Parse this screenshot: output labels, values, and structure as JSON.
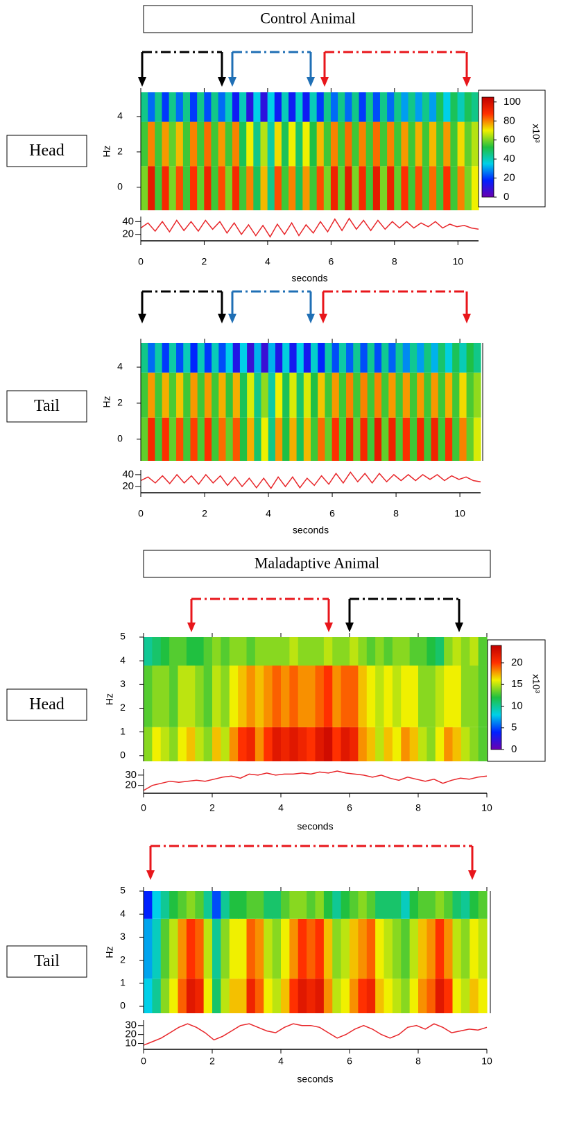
{
  "chart_data": [
    {
      "type": "heatmap",
      "title": "Control Animal",
      "row_label": "Head",
      "ylabel": "Hz",
      "xlabel": "seconds",
      "xlim": [
        0,
        10.65
      ],
      "xticks": [
        0,
        2,
        4,
        6,
        8,
        10
      ],
      "ylim": [
        -1.3,
        5.37
      ],
      "yticks": [
        0,
        2,
        4
      ],
      "y_edges": [
        -1.3,
        1.2,
        3.7,
        5.37
      ],
      "zlim": [
        0,
        105
      ],
      "colormap": [
        "#6a00b0",
        "#0020ff",
        "#00d0e8",
        "#20c040",
        "#f0f000",
        "#ff3000",
        "#c00000"
      ],
      "z": [
        [
          60,
          95,
          55,
          90,
          60,
          85,
          55,
          88,
          58,
          92,
          55,
          85,
          60,
          90,
          55,
          80,
          50,
          75,
          45,
          85,
          55,
          80,
          50,
          78,
          55,
          85,
          60,
          92,
          58,
          95,
          60,
          90,
          55,
          95,
          60,
          93,
          58,
          88,
          55,
          85,
          55,
          82,
          55,
          88,
          55,
          80,
          60,
          70
        ],
        [
          55,
          80,
          55,
          78,
          58,
          75,
          55,
          80,
          55,
          82,
          55,
          78,
          55,
          80,
          50,
          70,
          45,
          65,
          42,
          72,
          50,
          70,
          48,
          70,
          52,
          75,
          55,
          80,
          55,
          82,
          55,
          80,
          55,
          82,
          55,
          80,
          55,
          78,
          55,
          76,
          55,
          75,
          55,
          78,
          55,
          72,
          58,
          65
        ],
        [
          45,
          25,
          45,
          20,
          45,
          25,
          45,
          20,
          45,
          22,
          45,
          25,
          40,
          15,
          40,
          10,
          35,
          10,
          35,
          15,
          40,
          15,
          38,
          15,
          40,
          20,
          45,
          25,
          45,
          25,
          45,
          20,
          45,
          22,
          45,
          25,
          45,
          30,
          45,
          30,
          45,
          30,
          50,
          35,
          50,
          40,
          50,
          45
        ]
      ],
      "colorbar": {
        "ticks": [
          0,
          20,
          40,
          60,
          80,
          100
        ],
        "label": "x10³"
      },
      "trace": {
        "color": "#e8262a",
        "ylim": [
          12,
          48
        ],
        "yticks": [
          20,
          40
        ],
        "values": [
          30,
          38,
          25,
          40,
          24,
          42,
          26,
          40,
          25,
          42,
          28,
          40,
          22,
          38,
          20,
          35,
          18,
          34,
          16,
          36,
          20,
          38,
          18,
          35,
          22,
          40,
          24,
          44,
          26,
          45,
          28,
          42,
          26,
          42,
          28,
          40,
          30,
          40,
          30,
          38,
          32,
          40,
          30,
          36,
          32,
          34,
          30,
          28
        ]
      }
    },
    {
      "type": "heatmap",
      "row_label": "Tail",
      "ylabel": "Hz",
      "xlabel": "seconds",
      "xlim": [
        0,
        10.65
      ],
      "xticks": [
        0,
        2,
        4,
        6,
        8,
        10
      ],
      "ylim": [
        -1.2,
        5.35
      ],
      "yticks": [
        0,
        2,
        4
      ],
      "y_edges": [
        -1.2,
        1.2,
        3.7,
        5.35
      ],
      "zlim": [
        0,
        105
      ],
      "colormap": [
        "#6a00b0",
        "#0020ff",
        "#00d0e8",
        "#20c040",
        "#f0f000",
        "#ff3000",
        "#c00000"
      ],
      "z": [
        [
          58,
          90,
          55,
          88,
          58,
          85,
          55,
          86,
          56,
          88,
          55,
          82,
          58,
          84,
          52,
          76,
          48,
          70,
          45,
          78,
          52,
          76,
          50,
          75,
          55,
          82,
          58,
          88,
          56,
          92,
          58,
          90,
          55,
          95,
          58,
          92,
          56,
          88,
          55,
          90,
          55,
          92,
          55,
          88,
          55,
          80,
          58,
          68
        ],
        [
          55,
          78,
          55,
          76,
          56,
          74,
          55,
          78,
          55,
          78,
          55,
          76,
          54,
          76,
          50,
          68,
          45,
          62,
          42,
          70,
          50,
          68,
          48,
          68,
          52,
          74,
          55,
          78,
          55,
          80,
          55,
          80,
          55,
          80,
          55,
          78,
          55,
          78,
          55,
          78,
          55,
          78,
          55,
          76,
          55,
          72,
          56,
          62
        ],
        [
          45,
          25,
          42,
          20,
          42,
          22,
          40,
          18,
          40,
          20,
          40,
          22,
          35,
          12,
          35,
          8,
          32,
          8,
          32,
          12,
          36,
          14,
          35,
          14,
          38,
          18,
          42,
          22,
          42,
          24,
          44,
          22,
          44,
          22,
          44,
          24,
          44,
          28,
          44,
          30,
          46,
          32,
          48,
          36,
          50,
          40,
          52,
          45
        ]
      ],
      "trace": {
        "color": "#e8262a",
        "ylim": [
          12,
          48
        ],
        "yticks": [
          20,
          40
        ],
        "values": [
          30,
          36,
          26,
          38,
          25,
          40,
          26,
          38,
          24,
          40,
          26,
          38,
          22,
          36,
          20,
          34,
          18,
          34,
          17,
          36,
          20,
          36,
          18,
          34,
          22,
          38,
          24,
          42,
          26,
          44,
          28,
          42,
          26,
          42,
          28,
          40,
          30,
          40,
          30,
          40,
          32,
          40,
          30,
          38,
          32,
          36,
          30,
          28
        ]
      }
    },
    {
      "type": "heatmap",
      "title": "Maladaptive Animal",
      "row_label": "Head",
      "ylabel": "Hz",
      "xlabel": "seconds",
      "xlim": [
        0,
        10
      ],
      "xticks": [
        0,
        2,
        4,
        6,
        8,
        10
      ],
      "ylim": [
        -0.24,
        5
      ],
      "yticks": [
        0,
        1,
        2,
        3,
        4,
        5
      ],
      "y_edges": [
        -0.24,
        1.2,
        3.8,
        5
      ],
      "zlim": [
        0,
        24
      ],
      "colormap": [
        "#6a00b0",
        "#0020ff",
        "#00d0e8",
        "#20c040",
        "#f0f000",
        "#ff3000",
        "#c00000"
      ],
      "z": [
        [
          14,
          16,
          15,
          14,
          16,
          17,
          15,
          14,
          17,
          15,
          18,
          20,
          21,
          18,
          20,
          22,
          21,
          22,
          21,
          20,
          22,
          23,
          20,
          22,
          21,
          18,
          17,
          15,
          17,
          16,
          18,
          17,
          15,
          14,
          16,
          18,
          17,
          15,
          14,
          13
        ],
        [
          13,
          14,
          14,
          13,
          15,
          15,
          14,
          13,
          15,
          14,
          16,
          17,
          18,
          17,
          18,
          19,
          18,
          19,
          18,
          18,
          19,
          20,
          18,
          19,
          19,
          17,
          16,
          15,
          16,
          15,
          16,
          16,
          14,
          14,
          15,
          16,
          16,
          14,
          14,
          13
        ],
        [
          10,
          11,
          12,
          13,
          13,
          12,
          12,
          13,
          14,
          13,
          14,
          14,
          13,
          14,
          14,
          14,
          14,
          15,
          14,
          14,
          14,
          15,
          14,
          14,
          15,
          14,
          13,
          14,
          13,
          14,
          14,
          13,
          13,
          12,
          11,
          14,
          15,
          14,
          15,
          13
        ]
      ],
      "colorbar": {
        "ticks": [
          0,
          5,
          10,
          15,
          20
        ],
        "label": "x10³"
      },
      "trace": {
        "color": "#e8262a",
        "ylim": [
          13,
          36
        ],
        "yticks": [
          20,
          30
        ],
        "values": [
          15,
          20,
          22,
          24,
          23,
          24,
          25,
          24,
          26,
          28,
          29,
          27,
          31,
          30,
          32,
          30,
          31,
          31,
          32,
          31,
          33,
          32,
          34,
          32,
          31,
          30,
          28,
          30,
          27,
          25,
          28,
          26,
          24,
          26,
          22,
          25,
          27,
          26,
          28,
          29
        ]
      }
    },
    {
      "type": "heatmap",
      "row_label": "Tail",
      "ylabel": "Hz",
      "xlabel": "seconds",
      "xlim": [
        0,
        10
      ],
      "xticks": [
        0,
        2,
        4,
        6,
        8,
        10
      ],
      "ylim": [
        -0.3,
        5
      ],
      "yticks": [
        0,
        1,
        2,
        3,
        4,
        5
      ],
      "y_edges": [
        -0.3,
        1.2,
        3.8,
        5
      ],
      "zlim": [
        0,
        24
      ],
      "colormap": [
        "#6a00b0",
        "#0020ff",
        "#00d0e8",
        "#20c040",
        "#f0f000",
        "#ff3000",
        "#c00000"
      ],
      "z": [
        [
          8,
          10,
          14,
          16,
          19,
          22,
          21,
          16,
          11,
          15,
          17,
          17,
          21,
          19,
          16,
          15,
          17,
          20,
          22,
          21,
          22,
          18,
          15,
          16,
          18,
          20,
          21,
          17,
          16,
          15,
          14,
          16,
          18,
          19,
          22,
          20,
          16,
          15,
          17,
          16
        ],
        [
          7,
          9,
          13,
          15,
          18,
          20,
          19,
          15,
          10,
          14,
          16,
          16,
          19,
          18,
          15,
          14,
          16,
          18,
          20,
          19,
          20,
          17,
          14,
          15,
          17,
          18,
          19,
          16,
          15,
          14,
          13,
          15,
          17,
          18,
          20,
          18,
          15,
          14,
          16,
          15
        ],
        [
          4,
          8,
          10,
          12,
          13,
          14,
          13,
          10,
          5,
          10,
          12,
          12,
          13,
          13,
          11,
          11,
          13,
          14,
          14,
          13,
          14,
          12,
          10,
          12,
          13,
          14,
          13,
          11,
          11,
          11,
          9,
          12,
          13,
          13,
          14,
          13,
          11,
          10,
          12,
          13
        ]
      ],
      "trace": {
        "color": "#e8262a",
        "ylim": [
          5,
          36
        ],
        "yticks": [
          10,
          20,
          30
        ],
        "values": [
          8,
          12,
          16,
          22,
          28,
          32,
          28,
          22,
          14,
          18,
          24,
          30,
          32,
          28,
          24,
          22,
          28,
          32,
          30,
          30,
          28,
          22,
          16,
          20,
          26,
          30,
          26,
          20,
          16,
          20,
          28,
          30,
          26,
          32,
          28,
          22,
          24,
          26,
          25,
          28
        ]
      }
    }
  ]
}
